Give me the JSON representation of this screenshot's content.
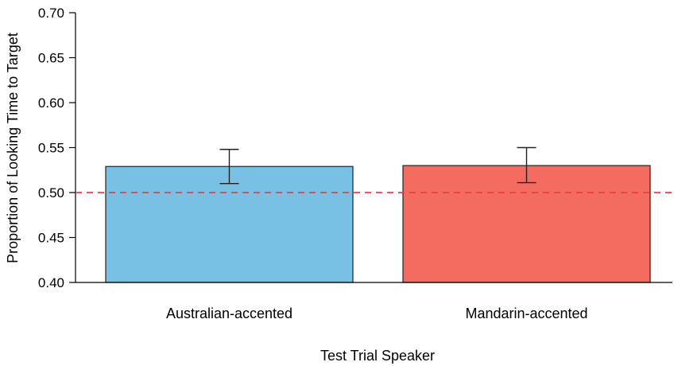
{
  "chart_data": {
    "type": "bar",
    "categories": [
      "Australian-accented",
      "Mandarin-accented"
    ],
    "values": [
      0.529,
      0.53
    ],
    "error_bars": [
      {
        "lower": 0.51,
        "upper": 0.548
      },
      {
        "lower": 0.511,
        "upper": 0.55
      }
    ],
    "colors": [
      "#78c0e4",
      "#f46b60"
    ],
    "reference_line": {
      "y": 0.5,
      "style": "dashed",
      "color": "#f03c3c"
    },
    "xlabel": "Test Trial Speaker",
    "ylabel": "Proportion of Looking Time to Target",
    "ylim": [
      0.4,
      0.7
    ],
    "yticks": [
      "0.40",
      "0.45",
      "0.50",
      "0.55",
      "0.60",
      "0.65",
      "0.70"
    ],
    "grid": false,
    "legend": "none"
  }
}
